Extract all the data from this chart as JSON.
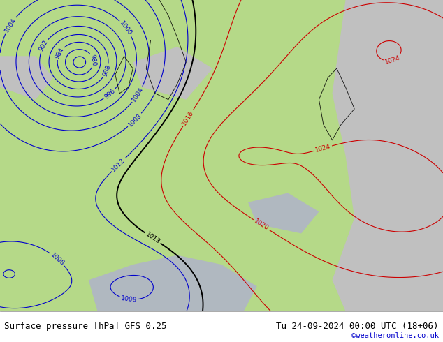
{
  "title_left": "Surface pressure [hPa] GFS 0.25",
  "title_right": "Tu 24-09-2024 00:00 UTC (18+06)",
  "credit": "©weatheronline.co.uk",
  "bg_color": "#c8c8c8",
  "map_green": "#b5d988",
  "map_gray": "#c0c0c0",
  "contour_blue": "#0000cc",
  "contour_red": "#cc0000",
  "contour_black": "#000000",
  "footer_fontsize": 9,
  "credit_color": "#0000cc",
  "white_bar_height": 0.09
}
